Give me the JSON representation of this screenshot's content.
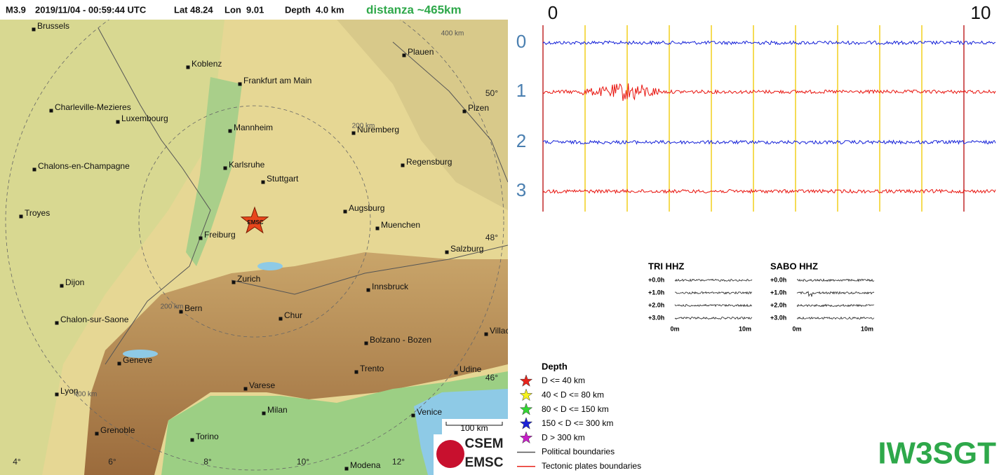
{
  "header": {
    "magnitude": "M3.9",
    "datetime": "2019/11/04 - 00:59:44 UTC",
    "lat": "Lat 48.24",
    "lon": "Lon  9.01",
    "depth": "Depth  4.0 km",
    "distance": "distanza ~465km"
  },
  "map": {
    "cities": [
      "Brussels",
      "Koblenz",
      "Frankfurt am Main",
      "Plauen",
      "Charleville-Mezieres",
      "Luxembourg",
      "Plzen",
      "Mannheim",
      "Nuremberg",
      "Karlsruhe",
      "Regensburg",
      "Chalons-en-Champagne",
      "Stuttgart",
      "Augsburg",
      "Troyes",
      "Freiburg",
      "Muenchen",
      "Salzburg",
      "Zurich",
      "Dijon",
      "Innsbruck",
      "Bern",
      "Chur",
      "Chalon-sur-Saone",
      "Villach",
      "Bolzano - Bozen",
      "Geneve",
      "Trento",
      "Udine",
      "Varese",
      "Lyon",
      "Milan",
      "Venice",
      "Grenoble",
      "Torino",
      "Modena"
    ],
    "latitudes": [
      "50°",
      "48°",
      "46°"
    ],
    "longitudes": [
      "4°",
      "6°",
      "8°",
      "10°",
      "12°"
    ],
    "distance_rings": [
      "400 km",
      "200 km",
      "200 km",
      "400 km"
    ],
    "epicenter": "EMSC",
    "scale_bar": "100 km",
    "logo": [
      "CSEM",
      "EMSC"
    ]
  },
  "seismogram": {
    "time_labels": [
      "0",
      "10"
    ],
    "rows": [
      "0",
      "1",
      "2",
      "3"
    ]
  },
  "helicorders": [
    {
      "title": "TRI HHZ",
      "rows": [
        "+0.0h",
        "+1.0h",
        "+2.0h",
        "+3.0h"
      ],
      "time_labels": [
        "0m",
        "10m"
      ]
    },
    {
      "title": "SABO HHZ",
      "rows": [
        "+0.0h",
        "+1.0h",
        "+2.0h",
        "+3.0h"
      ],
      "time_labels": [
        "0m",
        "10m"
      ]
    }
  ],
  "legend": {
    "title": "Depth",
    "items": [
      {
        "label": "D <= 40 km",
        "color": "#e8241c",
        "kind": "star"
      },
      {
        "label": "40 < D <= 80 km",
        "color": "#f6f21e",
        "kind": "star"
      },
      {
        "label": "80 < D <= 150 km",
        "color": "#33d633",
        "kind": "star"
      },
      {
        "label": "150 < D <= 300 km",
        "color": "#1c22d8",
        "kind": "star"
      },
      {
        "label": "D > 300 km",
        "color": "#c81ec8",
        "kind": "star"
      },
      {
        "label": "Political boundaries",
        "color": "#555555",
        "kind": "line"
      },
      {
        "label": "Tectonic plates boundaries",
        "color": "#e8241c",
        "kind": "line"
      }
    ]
  },
  "station": "IW3SGT"
}
